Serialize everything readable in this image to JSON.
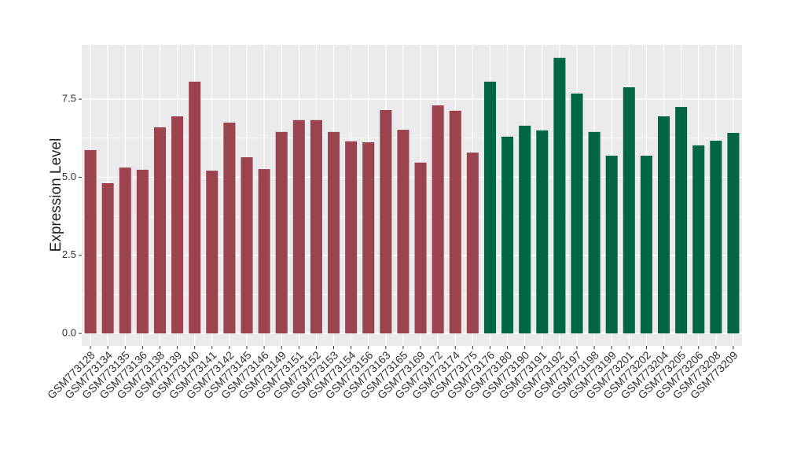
{
  "chart_data": {
    "type": "bar",
    "y_label": "Expression Level",
    "categories": [
      "GSM773128",
      "GSM773134",
      "GSM773135",
      "GSM773136",
      "GSM773138",
      "GSM773139",
      "GSM773140",
      "GSM773141",
      "GSM773142",
      "GSM773145",
      "GSM773146",
      "GSM773149",
      "GSM773151",
      "GSM773152",
      "GSM773153",
      "GSM773154",
      "GSM773156",
      "GSM773163",
      "GSM773165",
      "GSM773169",
      "GSM773172",
      "GSM773174",
      "GSM773175",
      "GSM773176",
      "GSM773180",
      "GSM773190",
      "GSM773191",
      "GSM773192",
      "GSM773197",
      "GSM773198",
      "GSM773199",
      "GSM773201",
      "GSM773202",
      "GSM773204",
      "GSM773205",
      "GSM773206",
      "GSM773208",
      "GSM773209"
    ],
    "values": [
      5.87,
      4.81,
      5.31,
      5.24,
      6.6,
      6.95,
      8.06,
      5.21,
      6.75,
      5.64,
      5.26,
      6.45,
      6.83,
      6.83,
      6.45,
      6.15,
      6.12,
      7.15,
      6.52,
      5.47,
      7.3,
      7.13,
      5.79,
      8.06,
      6.3,
      6.65,
      6.5,
      8.82,
      7.68,
      6.45,
      5.69,
      7.88,
      5.69,
      6.95,
      7.25,
      6.02,
      6.17,
      6.42
    ],
    "colors": [
      "#9b4450",
      "#9b4450",
      "#9b4450",
      "#9b4450",
      "#9b4450",
      "#9b4450",
      "#9b4450",
      "#9b4450",
      "#9b4450",
      "#9b4450",
      "#9b4450",
      "#9b4450",
      "#9b4450",
      "#9b4450",
      "#9b4450",
      "#9b4450",
      "#9b4450",
      "#9b4450",
      "#9b4450",
      "#9b4450",
      "#9b4450",
      "#9b4450",
      "#9b4450",
      "#006644",
      "#006644",
      "#006644",
      "#006644",
      "#006644",
      "#006644",
      "#006644",
      "#006644",
      "#006644",
      "#006644",
      "#006644",
      "#006644",
      "#006644",
      "#006644",
      "#006644"
    ],
    "ylim": [
      -0.4,
      9.24
    ],
    "yticks": [
      {
        "value": 0,
        "label": "0.0"
      },
      {
        "value": 2.5,
        "label": "2.5"
      },
      {
        "value": 5,
        "label": "5.0"
      },
      {
        "value": 7.5,
        "label": "7.5"
      }
    ],
    "grid": true
  }
}
